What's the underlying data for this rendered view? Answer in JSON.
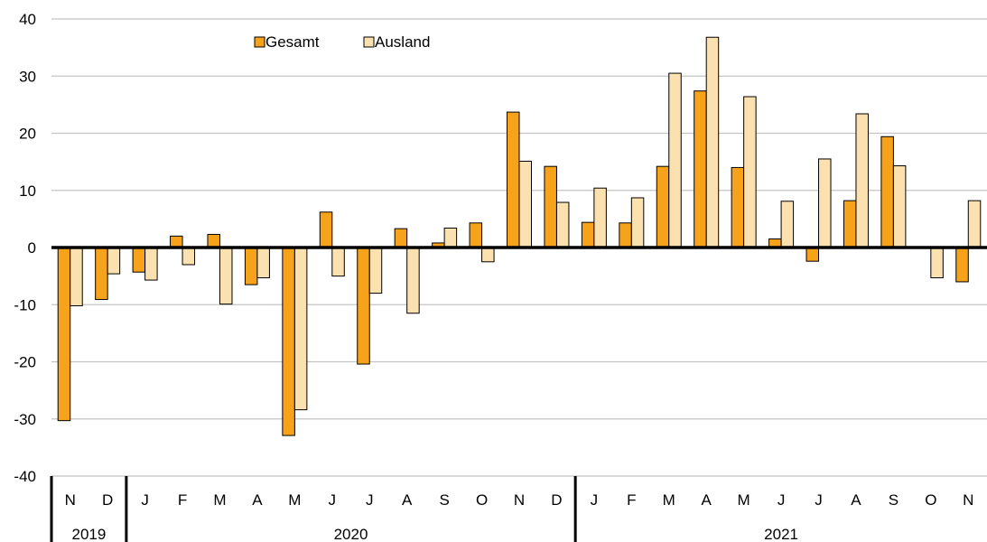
{
  "chart_data": {
    "type": "bar",
    "categories": [
      "N",
      "D",
      "J",
      "F",
      "M",
      "A",
      "M",
      "J",
      "J",
      "A",
      "S",
      "O",
      "N",
      "D",
      "J",
      "F",
      "M",
      "A",
      "M",
      "J",
      "J",
      "A",
      "S",
      "O",
      "N"
    ],
    "year_groups": [
      {
        "label": "2019",
        "count": 2
      },
      {
        "label": "2020",
        "count": 12
      },
      {
        "label": "2021",
        "count": 11
      }
    ],
    "series": [
      {
        "name": "Gesamt",
        "color": "#f7a21b",
        "values": [
          -30.3,
          -9.1,
          -4.3,
          2.0,
          2.3,
          -6.5,
          -32.9,
          6.2,
          -20.4,
          3.3,
          0.8,
          4.3,
          23.7,
          14.2,
          4.4,
          4.3,
          14.2,
          27.4,
          14.0,
          1.5,
          -2.4,
          8.2,
          19.4,
          null,
          -6.0
        ]
      },
      {
        "name": "Ausland",
        "color": "#fbe0b0",
        "values": [
          -10.2,
          -4.6,
          -5.7,
          -3.0,
          -9.9,
          -5.3,
          -28.4,
          -5.0,
          -8.0,
          -11.5,
          3.4,
          -2.5,
          15.1,
          7.9,
          10.4,
          8.7,
          30.5,
          36.8,
          26.4,
          8.1,
          15.5,
          23.4,
          14.3,
          -5.3,
          8.2
        ]
      }
    ],
    "ylim": [
      -40,
      40
    ],
    "yticks": [
      40,
      30,
      20,
      10,
      0,
      -10,
      -20,
      -30,
      -40
    ],
    "grid": true,
    "legend_position": "top"
  }
}
